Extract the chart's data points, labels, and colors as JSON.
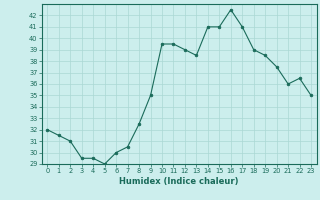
{
  "x": [
    0,
    1,
    2,
    3,
    4,
    5,
    6,
    7,
    8,
    9,
    10,
    11,
    12,
    13,
    14,
    15,
    16,
    17,
    18,
    19,
    20,
    21,
    22,
    23
  ],
  "y": [
    32,
    31.5,
    31,
    29.5,
    29.5,
    29,
    30,
    30.5,
    32.5,
    35,
    39.5,
    39.5,
    39,
    38.5,
    41,
    41,
    42.5,
    41,
    39,
    38.5,
    37.5,
    36,
    36.5,
    35
  ],
  "xlabel": "Humidex (Indice chaleur)",
  "xlim": [
    -0.5,
    23.5
  ],
  "ylim": [
    29,
    43
  ],
  "yticks": [
    29,
    30,
    31,
    32,
    33,
    34,
    35,
    36,
    37,
    38,
    39,
    40,
    41,
    42
  ],
  "xticks": [
    0,
    1,
    2,
    3,
    4,
    5,
    6,
    7,
    8,
    9,
    10,
    11,
    12,
    13,
    14,
    15,
    16,
    17,
    18,
    19,
    20,
    21,
    22,
    23
  ],
  "line_color": "#1a6b5a",
  "marker_color": "#1a6b5a",
  "bg_color": "#cceeed",
  "grid_color": "#aad8d4",
  "text_color": "#1a6b5a"
}
